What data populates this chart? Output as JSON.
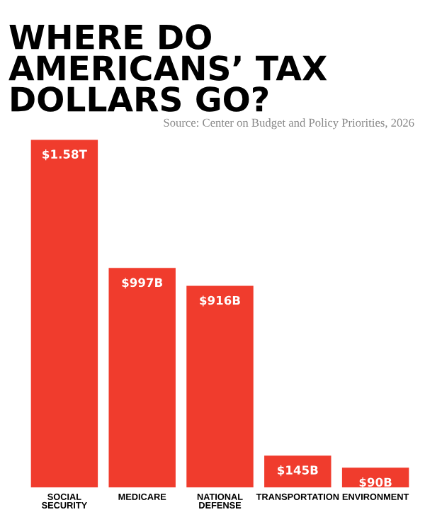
{
  "chart_data": {
    "type": "bar",
    "title": "WHERE DO AMERICANS’ TAX DOLLARS GO?",
    "annotations": [
      "Source: Center on Budget and Policy Priorities, 2026"
    ],
    "categories": [
      "SOCIAL SECURITY",
      "MEDICARE",
      "NATIONAL DEFENSE",
      "TRANSPORTATION",
      "ENVIRONMENT"
    ],
    "values": [
      1580000000000,
      997000000000,
      916000000000,
      145000000000,
      90000000000
    ],
    "value_labels": [
      "$1.58T",
      "$997B",
      "$916B",
      "$145B",
      "$90B"
    ],
    "color": "#f03c2d",
    "grid": false,
    "legend": false
  }
}
